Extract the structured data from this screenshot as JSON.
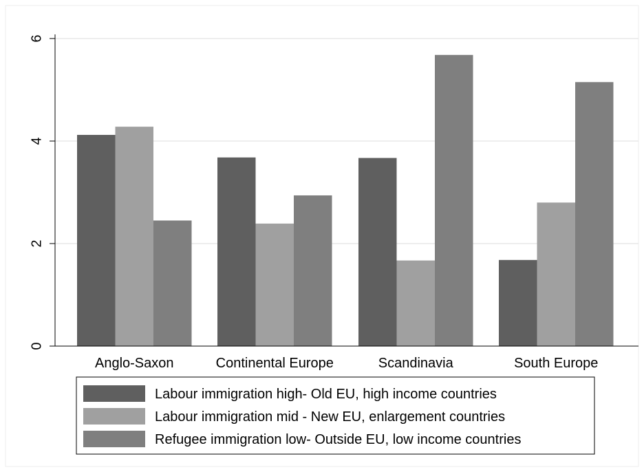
{
  "chart_data": {
    "type": "bar",
    "title": "",
    "xlabel": "",
    "ylabel": "",
    "categories": [
      "Anglo-Saxon",
      "Continental Europe",
      "Scandinavia",
      "South Europe"
    ],
    "series": [
      {
        "name": "Labour immigration high- Old EU, high income countries",
        "values": [
          4.12,
          3.68,
          3.67,
          1.68
        ],
        "color": "#5f5f5f"
      },
      {
        "name": "Labour immigration mid - New EU, enlargement countries",
        "values": [
          4.28,
          2.39,
          1.67,
          2.8
        ],
        "color": "#a0a0a0"
      },
      {
        "name": "Refugee immigration low- Outside EU, low income countries",
        "values": [
          2.45,
          2.94,
          5.68,
          5.15
        ],
        "color": "#7f7f7f"
      }
    ],
    "ylim": [
      0,
      6
    ],
    "yticks": [
      "0",
      "2",
      "4",
      "6"
    ],
    "grid": true,
    "legend_position": "bottom"
  }
}
